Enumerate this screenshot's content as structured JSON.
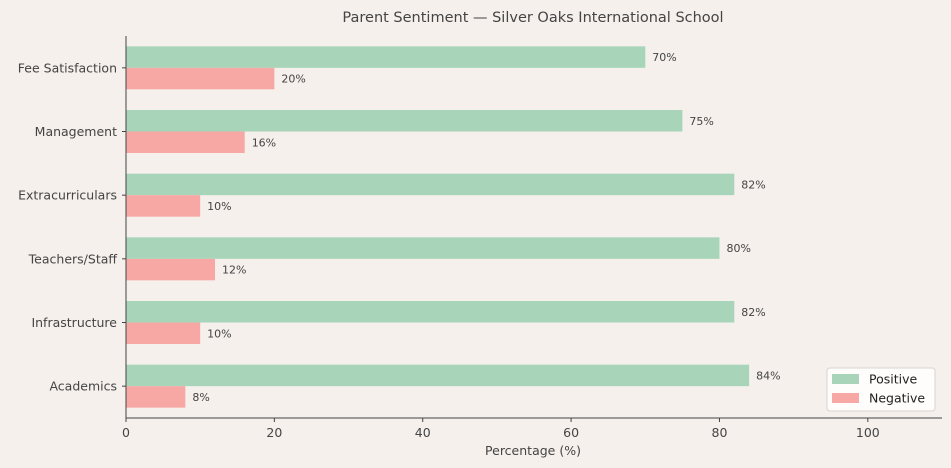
{
  "chart_data": {
    "type": "bar",
    "orientation": "horizontal",
    "title": "Parent Sentiment — Silver Oaks International School",
    "xlabel": "Percentage (%)",
    "ylabel": "",
    "xlim": [
      0,
      110
    ],
    "xticks": [
      0,
      20,
      40,
      60,
      80,
      100
    ],
    "categories": [
      "Academics",
      "Infrastructure",
      "Teachers/Staff",
      "Extracurriculars",
      "Management",
      "Fee Satisfaction"
    ],
    "series": [
      {
        "name": "Positive",
        "color": "#a8d5ba",
        "values": [
          84,
          82,
          80,
          82,
          75,
          70
        ]
      },
      {
        "name": "Negative",
        "color": "#f7a8a4",
        "values": [
          8,
          10,
          12,
          10,
          16,
          20
        ]
      }
    ],
    "value_suffix": "%",
    "grid": false,
    "legend_position": "bottom-right"
  }
}
